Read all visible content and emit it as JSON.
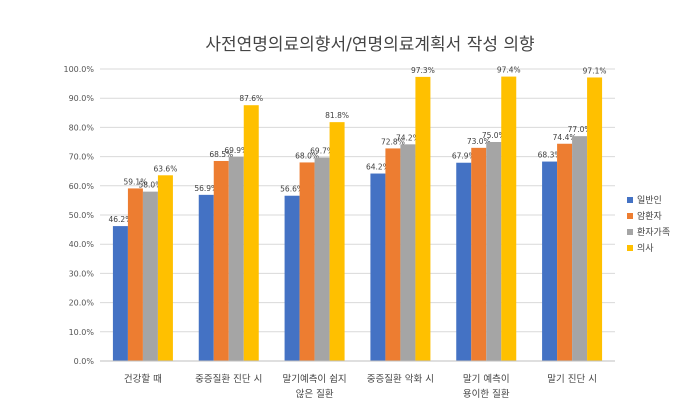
{
  "chart_data": {
    "type": "bar",
    "title": "사전연명의료의향서/연명의료계획서 작성 의향",
    "categories": [
      [
        "건강할 때"
      ],
      [
        "중증질환 진단 시"
      ],
      [
        "말기예측이 쉽지",
        "않은 질환"
      ],
      [
        "중증질환 악화 시"
      ],
      [
        "말기 예측이",
        "용이한 질환"
      ],
      [
        "말기 진단 시"
      ]
    ],
    "series": [
      {
        "name": "일반인",
        "color": "#4472C4",
        "values": [
          46.2,
          56.9,
          56.6,
          64.2,
          67.9,
          68.3
        ],
        "labels": [
          "46.2%",
          "56.9%",
          "56.6%",
          "64.2%",
          "67.9%",
          "68.3%"
        ]
      },
      {
        "name": "암환자",
        "color": "#ED7D31",
        "values": [
          59.1,
          68.5,
          68.0,
          72.8,
          73.0,
          74.4
        ],
        "labels": [
          "59.1%",
          "68.5%",
          "68.0%",
          "72.8%",
          "73.0%",
          "74.4%"
        ]
      },
      {
        "name": "환자가족",
        "color": "#A5A5A5",
        "values": [
          58.0,
          69.9,
          69.7,
          74.2,
          75.0,
          77.0
        ],
        "labels": [
          "58.0%",
          "69.9%",
          "69.7%",
          "74.2%",
          "75.0%",
          "77.0%"
        ]
      },
      {
        "name": "의사",
        "color": "#FFC000",
        "values": [
          63.6,
          87.6,
          81.8,
          97.3,
          97.4,
          97.1
        ],
        "labels": [
          "63.6%",
          "87.6%",
          "81.8%",
          "97.3%",
          "97.4%",
          "97.1%"
        ]
      }
    ],
    "ylim": [
      0,
      100
    ],
    "yticks": [
      0,
      10,
      20,
      30,
      40,
      50,
      60,
      70,
      80,
      90,
      100
    ],
    "ytick_labels": [
      "0.0%",
      "10.0%",
      "20.0%",
      "30.0%",
      "40.0%",
      "50.0%",
      "60.0%",
      "70.0%",
      "80.0%",
      "90.0%",
      "100.0%"
    ],
    "grid": true,
    "legend_position": "right"
  }
}
